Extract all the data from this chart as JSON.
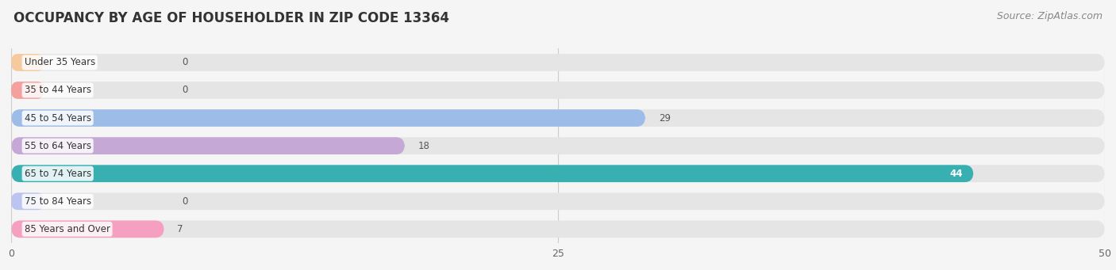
{
  "title": "OCCUPANCY BY AGE OF HOUSEHOLDER IN ZIP CODE 13364",
  "source": "Source: ZipAtlas.com",
  "categories": [
    "Under 35 Years",
    "35 to 44 Years",
    "45 to 54 Years",
    "55 to 64 Years",
    "65 to 74 Years",
    "75 to 84 Years",
    "85 Years and Over"
  ],
  "values": [
    0,
    0,
    29,
    18,
    44,
    0,
    7
  ],
  "bar_colors": [
    "#f7c99e",
    "#f4a09e",
    "#9dbde8",
    "#c5a8d5",
    "#38afb0",
    "#bcc5f0",
    "#f5a0c0"
  ],
  "label_colors": [
    "#555555",
    "#555555",
    "#555555",
    "#555555",
    "#ffffff",
    "#555555",
    "#555555"
  ],
  "background_color": "#f5f5f5",
  "bar_bg_color": "#e5e5e5",
  "xlim": [
    0,
    50
  ],
  "xticks": [
    0,
    25,
    50
  ],
  "title_fontsize": 12,
  "source_fontsize": 9,
  "bar_height": 0.62,
  "figsize": [
    14.06,
    3.41
  ],
  "dpi": 100
}
